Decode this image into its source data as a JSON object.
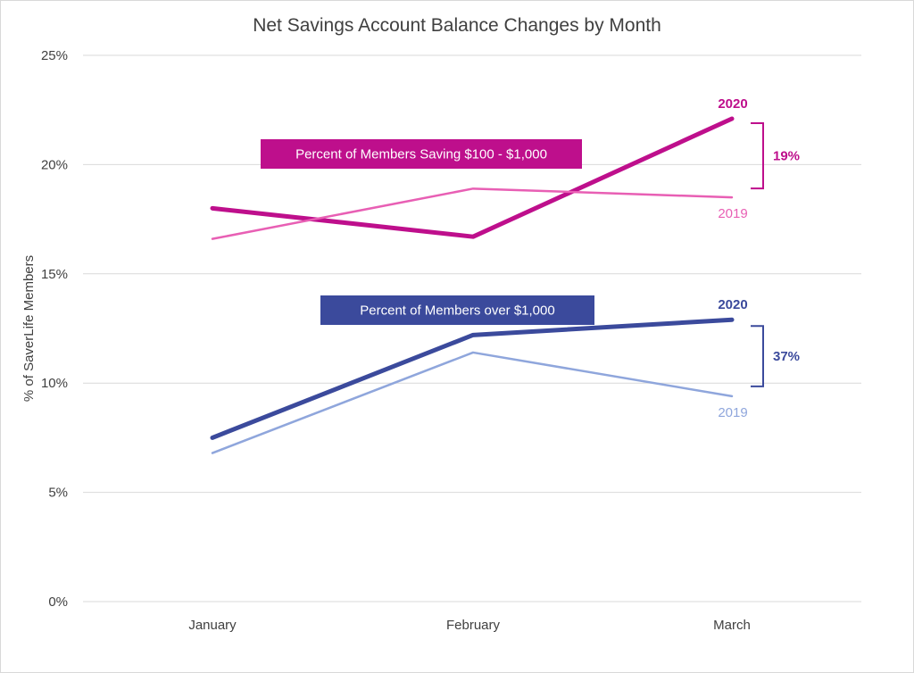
{
  "chart_data": {
    "type": "line",
    "title": "Net Savings Account Balance Changes by Month",
    "xlabel": "",
    "ylabel": "% of SaverLife Members",
    "categories": [
      "January",
      "February",
      "March"
    ],
    "y_ticks": [
      "0%",
      "5%",
      "10%",
      "15%",
      "20%",
      "25%"
    ],
    "ylim": [
      0,
      25
    ],
    "grid": "horizontal",
    "series": [
      {
        "group": "Percent of Members Saving $100 - $1,000",
        "name": "2020",
        "values": [
          18.0,
          16.7,
          22.1
        ],
        "color": "#be0f8c",
        "weight": "thick"
      },
      {
        "group": "Percent of Members Saving $100 - $1,000",
        "name": "2019",
        "values": [
          16.6,
          18.9,
          18.5
        ],
        "color": "#e85fb4",
        "weight": "thin"
      },
      {
        "group": "Percent of Members over $1,000",
        "name": "2020",
        "values": [
          7.5,
          12.2,
          12.9
        ],
        "color": "#3b4a9c",
        "weight": "thick"
      },
      {
        "group": "Percent of Members over $1,000",
        "name": "2019",
        "values": [
          6.8,
          11.4,
          9.4
        ],
        "color": "#8fa6dc",
        "weight": "thin"
      }
    ],
    "annotations": [
      {
        "label": "Percent of Members Saving $100 - $1,000",
        "color": "#be0f8c",
        "difference": "19%"
      },
      {
        "label": "Percent of Members over $1,000",
        "color": "#3b4a9c",
        "difference": "37%"
      }
    ]
  }
}
